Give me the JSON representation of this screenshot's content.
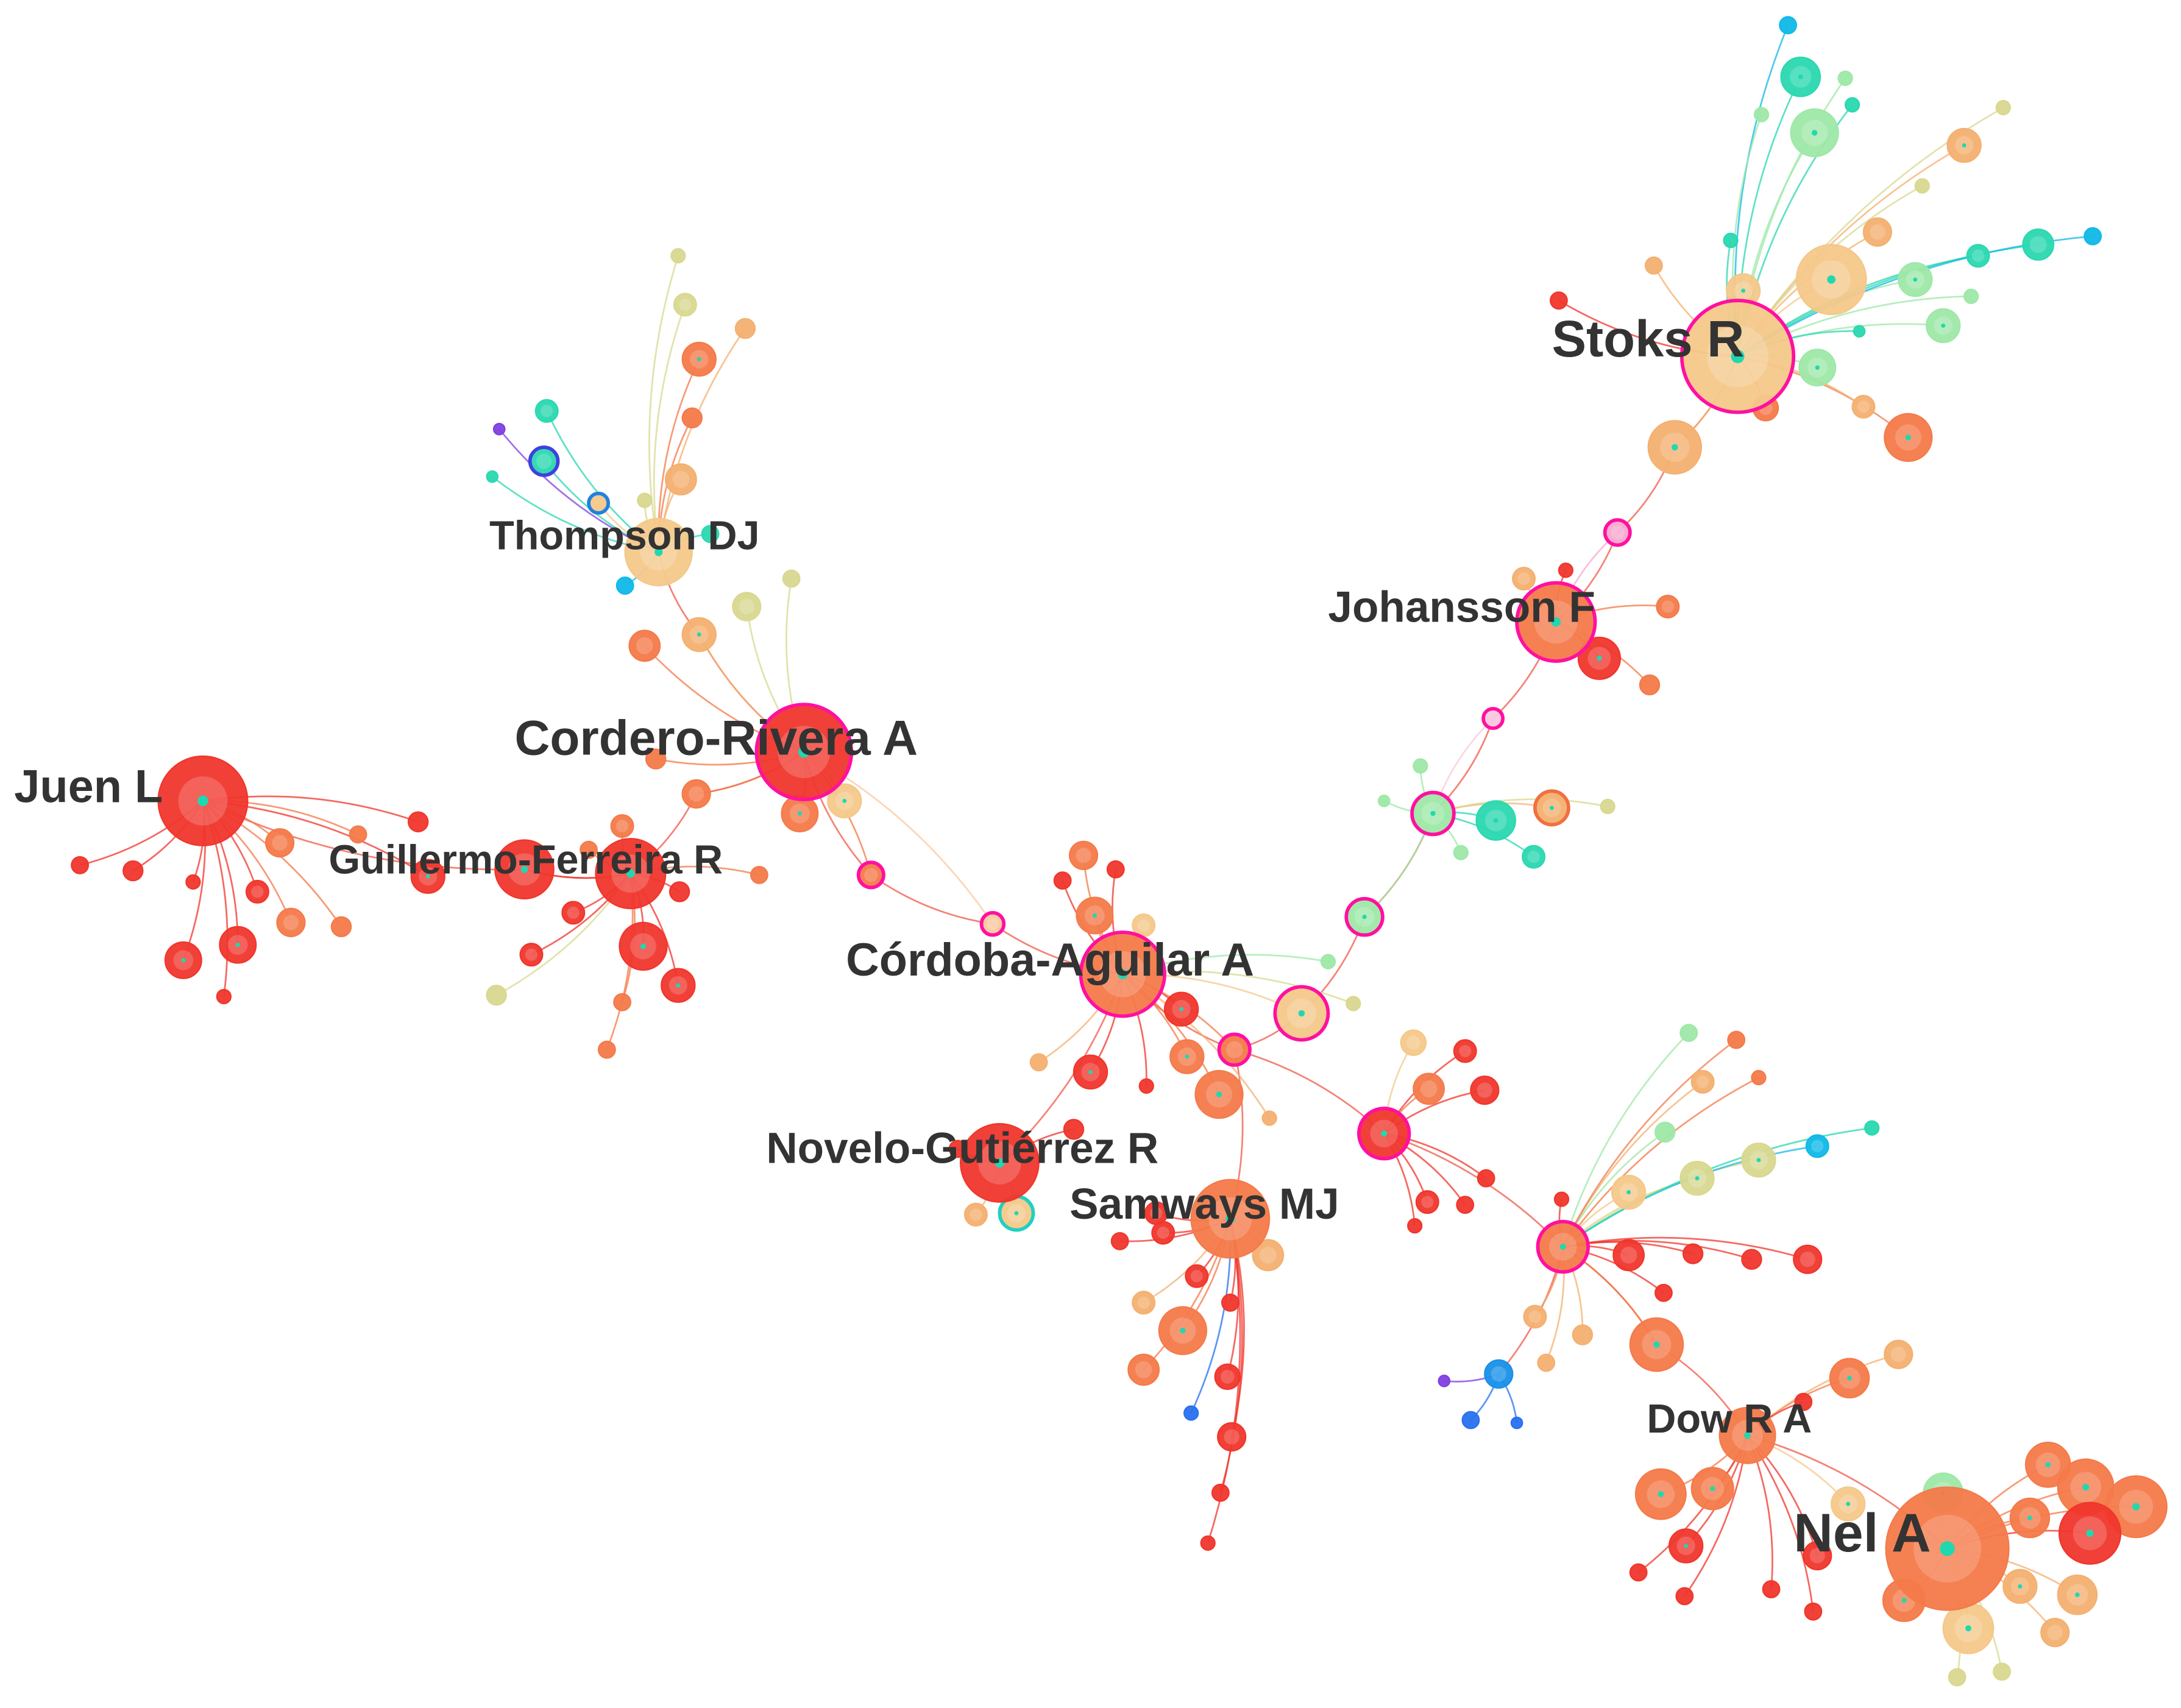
{
  "nodes": [
    {
      "label": "Stoks R"
    },
    {
      "label": "Thompson DJ"
    },
    {
      "label": "Johansson F"
    },
    {
      "label": "Cordero-Rivera A"
    },
    {
      "label": "Juen L"
    },
    {
      "label": "Guillermo-Ferreira R"
    },
    {
      "label": "Córdoba-Aguilar A"
    },
    {
      "label": "Novelo-Gutiérrez R"
    },
    {
      "label": "Samways MJ"
    },
    {
      "label": "Dow R A"
    },
    {
      "label": "Nel A"
    }
  ]
}
